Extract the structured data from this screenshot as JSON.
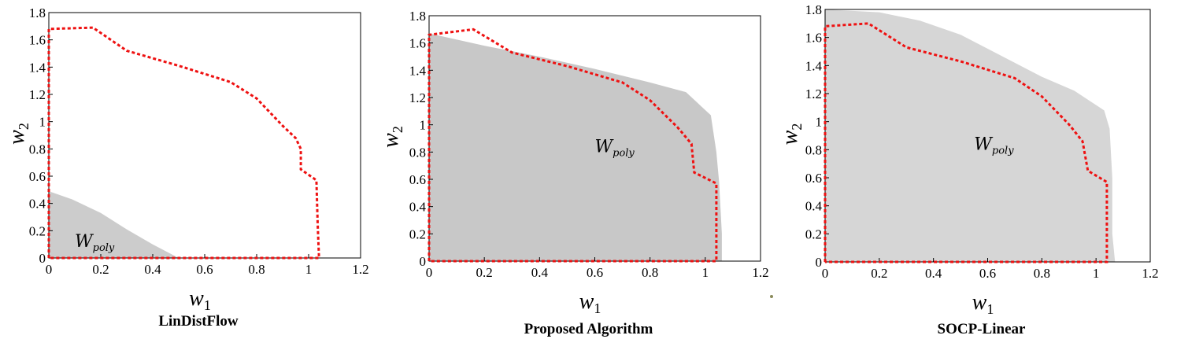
{
  "chart_data": [
    {
      "type": "area",
      "title": "LinDistFlow",
      "xlabel_main": "w",
      "xlabel_sub": "1",
      "ylabel_main": "w",
      "ylabel_sub": "2",
      "xlim": [
        0,
        1.2
      ],
      "ylim": [
        0,
        1.8
      ],
      "xticks": [
        "0",
        "0.2",
        "0.4",
        "0.6",
        "0.8",
        "1",
        "1.2"
      ],
      "yticks": [
        "0",
        "0.2",
        "0.4",
        "0.6",
        "0.8",
        "1",
        "1.2",
        "1.4",
        "1.6",
        "1.8"
      ],
      "grid": false,
      "annotation": {
        "main": "W",
        "sub": "poly",
        "x": 0.1,
        "y": 0.08
      },
      "shaded_region": [
        [
          0,
          0
        ],
        [
          0,
          0.49
        ],
        [
          0.09,
          0.43
        ],
        [
          0.2,
          0.33
        ],
        [
          0.3,
          0.21
        ],
        [
          0.4,
          0.1
        ],
        [
          0.5,
          0
        ],
        [
          1.05,
          0
        ]
      ],
      "boundary": [
        [
          0,
          0
        ],
        [
          0,
          1.68
        ],
        [
          0.17,
          1.69
        ],
        [
          0.3,
          1.52
        ],
        [
          0.5,
          1.41
        ],
        [
          0.7,
          1.29
        ],
        [
          0.8,
          1.17
        ],
        [
          0.9,
          0.97
        ],
        [
          0.95,
          0.88
        ],
        [
          0.97,
          0.8
        ],
        [
          0.97,
          0.65
        ],
        [
          1.03,
          0.57
        ],
        [
          1.035,
          0.25
        ],
        [
          1.04,
          0
        ],
        [
          0,
          0
        ]
      ]
    },
    {
      "type": "area",
      "title": "Proposed Algorithm",
      "xlabel_main": "w",
      "xlabel_sub": "1",
      "ylabel_main": "w",
      "ylabel_sub": "2",
      "xlim": [
        0,
        1.2
      ],
      "ylim": [
        0,
        1.8
      ],
      "xticks": [
        "0",
        "0.2",
        "0.4",
        "0.6",
        "0.8",
        "1",
        "1.2"
      ],
      "yticks": [
        "0",
        "0.2",
        "0.4",
        "0.6",
        "0.8",
        "1",
        "1.2",
        "1.4",
        "1.6",
        "1.8"
      ],
      "grid": false,
      "annotation": {
        "main": "W",
        "sub": "poly",
        "x": 0.6,
        "y": 0.8
      },
      "shaded_region": [
        [
          0,
          0
        ],
        [
          0,
          1.67
        ],
        [
          0.2,
          1.58
        ],
        [
          0.4,
          1.5
        ],
        [
          0.6,
          1.41
        ],
        [
          0.8,
          1.31
        ],
        [
          0.93,
          1.24
        ],
        [
          1.02,
          1.07
        ],
        [
          1.04,
          0.8
        ],
        [
          1.05,
          0.58
        ],
        [
          1.06,
          0.2
        ],
        [
          1.06,
          0
        ]
      ],
      "boundary": [
        [
          0,
          0
        ],
        [
          0,
          1.66
        ],
        [
          0.16,
          1.7
        ],
        [
          0.3,
          1.53
        ],
        [
          0.5,
          1.43
        ],
        [
          0.7,
          1.31
        ],
        [
          0.8,
          1.18
        ],
        [
          0.9,
          0.98
        ],
        [
          0.95,
          0.86
        ],
        [
          0.96,
          0.65
        ],
        [
          1.04,
          0.57
        ],
        [
          1.04,
          0.25
        ],
        [
          1.04,
          0
        ],
        [
          0,
          0
        ]
      ]
    },
    {
      "type": "area",
      "title": "SOCP-Linear",
      "xlabel_main": "w",
      "xlabel_sub": "1",
      "ylabel_main": "w",
      "ylabel_sub": "2",
      "xlim": [
        0,
        1.2
      ],
      "ylim": [
        0,
        1.8
      ],
      "xticks": [
        "0",
        "0.2",
        "0.4",
        "0.6",
        "0.8",
        "1",
        "1.2"
      ],
      "yticks": [
        "0",
        "0.2",
        "0.4",
        "0.6",
        "0.8",
        "1",
        "1.2",
        "1.4",
        "1.6",
        "1.8"
      ],
      "grid": false,
      "annotation": {
        "main": "W",
        "sub": "poly",
        "x": 0.55,
        "y": 0.8
      },
      "shaded_region": [
        [
          0,
          0
        ],
        [
          0,
          1.8
        ],
        [
          0.2,
          1.78
        ],
        [
          0.35,
          1.72
        ],
        [
          0.5,
          1.62
        ],
        [
          0.65,
          1.47
        ],
        [
          0.8,
          1.32
        ],
        [
          0.92,
          1.22
        ],
        [
          1.03,
          1.08
        ],
        [
          1.05,
          0.95
        ],
        [
          1.06,
          0.6
        ],
        [
          1.06,
          0.2
        ],
        [
          1.07,
          0
        ]
      ],
      "boundary": [
        [
          0,
          0
        ],
        [
          0,
          1.68
        ],
        [
          0.16,
          1.7
        ],
        [
          0.3,
          1.53
        ],
        [
          0.5,
          1.43
        ],
        [
          0.7,
          1.31
        ],
        [
          0.8,
          1.18
        ],
        [
          0.9,
          0.98
        ],
        [
          0.95,
          0.86
        ],
        [
          0.97,
          0.65
        ],
        [
          1.04,
          0.57
        ],
        [
          1.04,
          0.25
        ],
        [
          1.04,
          0
        ],
        [
          0,
          0
        ]
      ]
    }
  ]
}
